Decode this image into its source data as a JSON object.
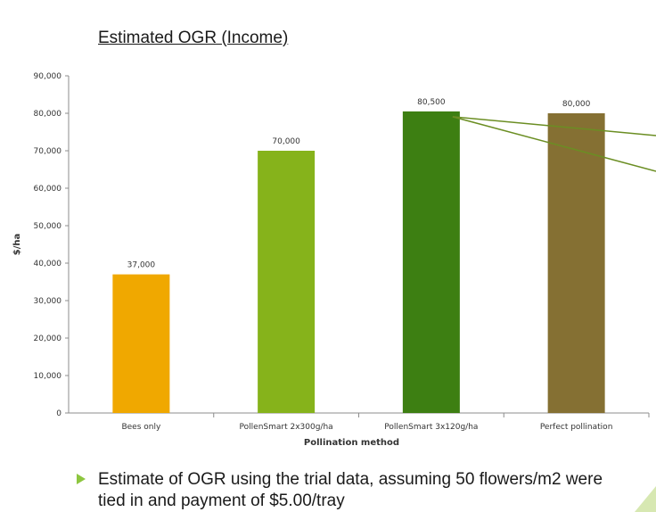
{
  "slide": {
    "title": "Estimated OGR (Income)",
    "bullet": "Estimate of OGR using the trial data, assuming 50 flowers/m2 were tied in and payment of $5.00/tray",
    "bullet_color": "#8dc63f",
    "callout_color": "#6b8e23"
  },
  "chart_data": {
    "type": "bar",
    "title": "",
    "xlabel": "Pollination method",
    "ylabel": "$/ha",
    "ylim": [
      0,
      90000
    ],
    "yticks": [
      "0",
      "10,000",
      "20,000",
      "30,000",
      "40,000",
      "50,000",
      "60,000",
      "70,000",
      "80,000",
      "90,000"
    ],
    "categories": [
      "Bees only",
      "PollenSmart 2x300g/ha",
      "PollenSmart 3x120g/ha",
      "Perfect pollination"
    ],
    "values": [
      37000,
      70000,
      80500,
      80000
    ],
    "data_labels": [
      "37,000",
      "70,000",
      "80,500",
      "80,000"
    ],
    "colors": [
      "#f0a800",
      "#86b31b",
      "#3d7f12",
      "#857033"
    ],
    "grid": false,
    "legend": "none"
  }
}
